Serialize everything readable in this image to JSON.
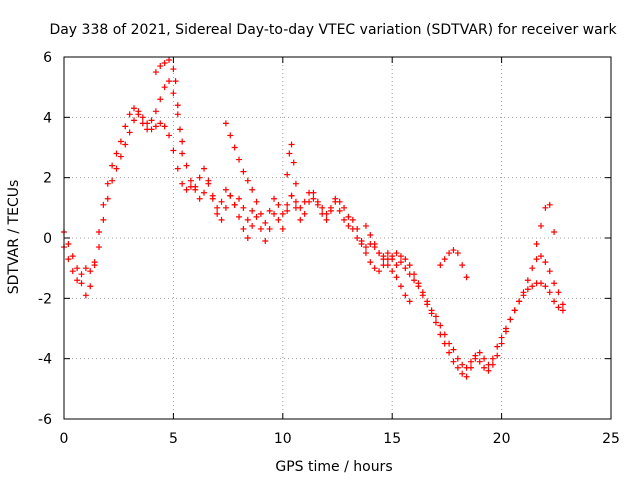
{
  "chart_data": {
    "type": "scatter",
    "title": "Day 338 of 2021, Sidereal Day-to-day VTEC variation (SDTVAR) for receiver wark",
    "xlabel": "GPS time / hours",
    "ylabel": "SDTVAR / TECUs",
    "xlim": [
      0,
      25
    ],
    "ylim": [
      -6,
      6
    ],
    "xticks": [
      "0",
      "5",
      "10",
      "15",
      "20",
      "25"
    ],
    "yticks": [
      "-6",
      "-4",
      "-2",
      "0",
      "2",
      "4",
      "6"
    ],
    "grid": true,
    "marker": "+",
    "series_color": "#ff0000",
    "series": [
      {
        "x": [
          0.0,
          0.2,
          0.4,
          0.6,
          0.8,
          1.0,
          1.2,
          1.4,
          1.6,
          1.8,
          2.0,
          2.2,
          2.4,
          2.6,
          2.8,
          3.0,
          3.2,
          3.4,
          3.6,
          3.8,
          4.0,
          4.2,
          4.4,
          4.6,
          4.8,
          5.0,
          5.2,
          5.4,
          5.6,
          5.8,
          6.0,
          6.2,
          6.4,
          6.6,
          6.8,
          7.0,
          7.2,
          7.4,
          7.6,
          7.8,
          8.0,
          8.2,
          8.4,
          8.6,
          8.8,
          9.0,
          9.2,
          9.4,
          9.6,
          9.8,
          10.0,
          10.2,
          10.4,
          10.6,
          10.8,
          11.0,
          11.2,
          11.4,
          11.6,
          11.8,
          12.0,
          12.2,
          12.4,
          12.6,
          12.8,
          13.0,
          13.2,
          13.4,
          13.6,
          13.8,
          14.0,
          14.2,
          14.4,
          14.6,
          14.8,
          15.0,
          15.2,
          15.4,
          15.6,
          15.8,
          16.0,
          16.2,
          16.4,
          16.6,
          16.8,
          17.0,
          17.2,
          17.4,
          17.6,
          17.8,
          18.0,
          18.2,
          18.4,
          18.6,
          18.8,
          19.0,
          19.2,
          19.4,
          19.6,
          19.8,
          20.0,
          20.2,
          20.4,
          20.6,
          20.8,
          21.0,
          21.2,
          21.4,
          21.6,
          21.8,
          22.0,
          22.2,
          22.4,
          22.6,
          22.8
        ],
        "y": [
          0.2,
          -0.2,
          -0.6,
          -1.0,
          -1.5,
          -1.9,
          -1.6,
          -0.8,
          0.2,
          1.1,
          1.8,
          2.4,
          2.8,
          3.2,
          3.7,
          4.1,
          4.3,
          4.1,
          3.8,
          3.6,
          3.6,
          3.7,
          3.8,
          3.7,
          3.4,
          2.9,
          2.3,
          1.8,
          1.6,
          1.7,
          1.6,
          1.3,
          1.5,
          1.8,
          1.4,
          1.0,
          1.2,
          1.6,
          1.4,
          1.1,
          1.3,
          1.0,
          0.6,
          0.9,
          1.2,
          0.8,
          0.5,
          0.9,
          1.3,
          1.1,
          0.8,
          1.1,
          1.4,
          1.2,
          1.0,
          1.2,
          1.5,
          1.3,
          1.1,
          1.0,
          0.8,
          1.0,
          1.3,
          1.2,
          1.0,
          0.7,
          0.3,
          0.0,
          -0.2,
          -0.3,
          -0.2,
          -0.3,
          -0.5,
          -0.6,
          -0.5,
          -0.7,
          -0.9,
          -0.8,
          -1.0,
          -1.2,
          -1.4,
          -1.6,
          -1.9,
          -2.2,
          -2.5,
          -2.8,
          -3.2,
          -3.5,
          -3.8,
          -4.1,
          -4.3,
          -4.5,
          -4.6,
          -4.3,
          -4.0,
          -3.8,
          -4.0,
          -4.2,
          -4.0,
          -3.6,
          -3.3,
          -3.0,
          -2.7,
          -2.4,
          -2.1,
          -1.9,
          -1.7,
          -1.6,
          -1.5,
          -1.5,
          -1.6,
          -1.8,
          -2.1,
          -2.3,
          -2.4
        ]
      },
      {
        "x": [
          0.0,
          0.2,
          0.4,
          0.6,
          0.8,
          1.0,
          1.2,
          1.4,
          1.6,
          1.8,
          2.0,
          2.2,
          2.4,
          2.6,
          2.8,
          3.0,
          3.2,
          3.4,
          3.6,
          3.8,
          4.0,
          4.2,
          4.4,
          4.6,
          4.8,
          5.0,
          5.2,
          5.4,
          5.6,
          5.8,
          6.0,
          6.2,
          6.4,
          6.6,
          6.8,
          7.0,
          7.2,
          7.4,
          7.6,
          7.8,
          8.0,
          8.2,
          8.4,
          8.6,
          8.8,
          9.0,
          9.2,
          9.4,
          9.6,
          9.8,
          10.0,
          10.2,
          10.4,
          10.6,
          10.8,
          11.0,
          11.2,
          11.4,
          11.6,
          11.8,
          12.0,
          12.2,
          12.4,
          12.6,
          12.8,
          13.0,
          13.2,
          13.4,
          13.6,
          13.8,
          14.0,
          14.2,
          14.4,
          14.6,
          14.8,
          15.0,
          15.2,
          15.4,
          15.6,
          15.8,
          16.0,
          16.2,
          16.4,
          16.6,
          16.8,
          17.0,
          17.2,
          17.4,
          17.6,
          17.8,
          18.0,
          18.2,
          18.4,
          18.6,
          18.8,
          19.0,
          19.2,
          19.4,
          19.6,
          19.8,
          20.0,
          20.2,
          20.4,
          20.6,
          20.8,
          21.0,
          21.2,
          21.4,
          21.6,
          21.8,
          22.0,
          22.2,
          22.4,
          22.6,
          22.8
        ],
        "y": [
          -0.3,
          -0.7,
          -1.1,
          -1.4,
          -1.2,
          -1.0,
          -1.1,
          -0.9,
          -0.3,
          0.6,
          1.3,
          1.9,
          2.3,
          2.7,
          3.1,
          3.5,
          3.9,
          4.2,
          4.0,
          3.8,
          3.9,
          4.2,
          4.6,
          5.0,
          5.2,
          4.8,
          4.1,
          3.2,
          2.4,
          1.9,
          1.7,
          2.0,
          2.3,
          1.9,
          1.3,
          0.8,
          0.6,
          1.0,
          1.4,
          1.1,
          0.7,
          0.3,
          0.0,
          0.4,
          0.7,
          0.3,
          -0.1,
          0.3,
          0.8,
          0.6,
          0.3,
          0.9,
          1.4,
          1.0,
          0.6,
          0.8,
          1.2,
          1.5,
          1.2,
          0.8,
          0.6,
          0.9,
          1.2,
          0.9,
          0.6,
          0.4,
          0.6,
          0.3,
          -0.1,
          -0.5,
          -0.8,
          -1.0,
          -1.1,
          -0.9,
          -0.7,
          -0.6,
          -0.5,
          -0.6,
          -0.7,
          -0.9,
          -1.2,
          -1.5,
          -1.8,
          -2.1,
          -2.4,
          -2.6,
          -2.9,
          -3.2,
          -3.5,
          -3.7,
          -4.0,
          -4.2,
          -4.3,
          -4.1,
          -3.9,
          -4.1,
          -4.3,
          -4.4,
          -4.2,
          -3.9,
          -3.5,
          -3.1,
          -2.7,
          -2.4,
          -2.1,
          -1.8,
          -1.4,
          -1.0,
          -0.7,
          -0.6,
          -0.8,
          -1.1,
          -1.5,
          -1.8,
          -2.2
        ]
      },
      {
        "x": [
          4.2,
          4.4,
          4.6,
          4.8,
          5.0,
          5.1,
          5.2,
          5.3,
          5.4
        ],
        "y": [
          5.5,
          5.7,
          5.8,
          5.9,
          5.6,
          5.2,
          4.4,
          3.6,
          2.8
        ]
      },
      {
        "x": [
          7.4,
          7.6,
          7.8,
          8.0,
          8.2,
          8.4,
          8.6
        ],
        "y": [
          3.8,
          3.4,
          3.0,
          2.6,
          2.2,
          1.9,
          1.6
        ]
      },
      {
        "x": [
          10.2,
          10.3,
          10.4,
          10.5,
          10.6
        ],
        "y": [
          2.1,
          2.8,
          3.1,
          2.5,
          1.8
        ]
      },
      {
        "x": [
          13.8,
          14.0,
          14.2,
          14.4,
          14.6,
          14.8,
          15.0,
          15.2,
          15.4,
          15.6,
          15.8
        ],
        "y": [
          0.4,
          0.1,
          -0.2,
          -0.5,
          -0.7,
          -0.9,
          -1.1,
          -1.3,
          -1.6,
          -1.9,
          -2.1
        ]
      },
      {
        "x": [
          17.2,
          17.4,
          17.6,
          17.8,
          18.0,
          18.2,
          18.4
        ],
        "y": [
          -0.9,
          -0.7,
          -0.5,
          -0.4,
          -0.5,
          -0.9,
          -1.3
        ]
      },
      {
        "x": [
          21.6,
          21.8,
          22.0,
          22.2,
          22.4
        ],
        "y": [
          -0.2,
          0.4,
          1.0,
          1.1,
          0.2
        ]
      }
    ]
  }
}
